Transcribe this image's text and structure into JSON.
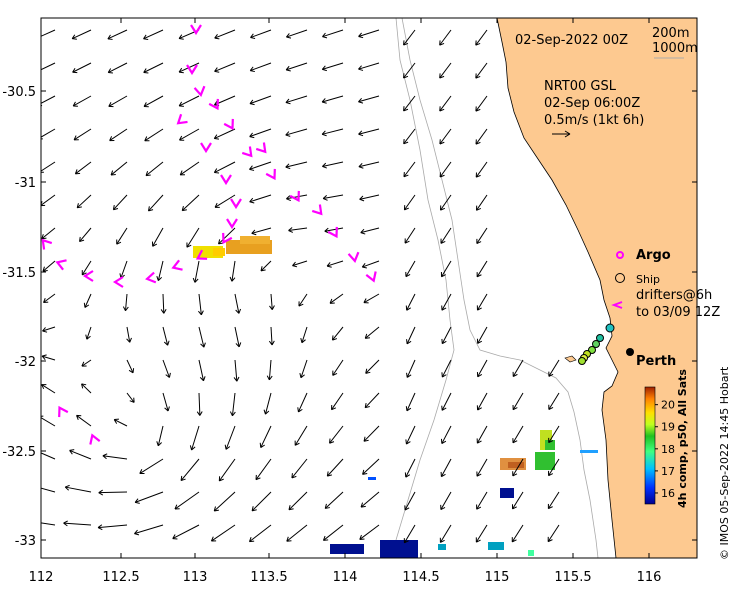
{
  "map": {
    "date_label": "02-Sep-2022 00Z",
    "contour_labels": [
      "200m",
      "1000m"
    ],
    "model_label": [
      "NRT00 GSL",
      "02-Sep 06:00Z",
      "0.5m/s (1kt 6h)"
    ],
    "place_label": "Perth",
    "legend": {
      "argo": "Argo",
      "ship": "Ship",
      "drifters": [
        "drifters@6h",
        "to 03/09 12Z"
      ]
    },
    "colorbar": {
      "label": "4h comp, p50, All Sats",
      "ticks": [
        16,
        17,
        18,
        19,
        20
      ],
      "range": [
        15.5,
        20.8
      ]
    },
    "credit": "© IMOS 05-Sep-2022 14:45 Hobart",
    "x_ticks": [
      "112",
      "112.5",
      "113",
      "113.5",
      "114",
      "114.5",
      "115",
      "115.5",
      "116"
    ],
    "y_ticks": [
      "-30.5",
      "-31",
      "-31.5",
      "-32",
      "-32.5",
      "-33"
    ],
    "colors": {
      "land": "#FDC990",
      "drifter": "#FF00FF",
      "arrow": "#000000",
      "coast": "#000000",
      "bathymetry": "#aaaaaa"
    }
  }
}
